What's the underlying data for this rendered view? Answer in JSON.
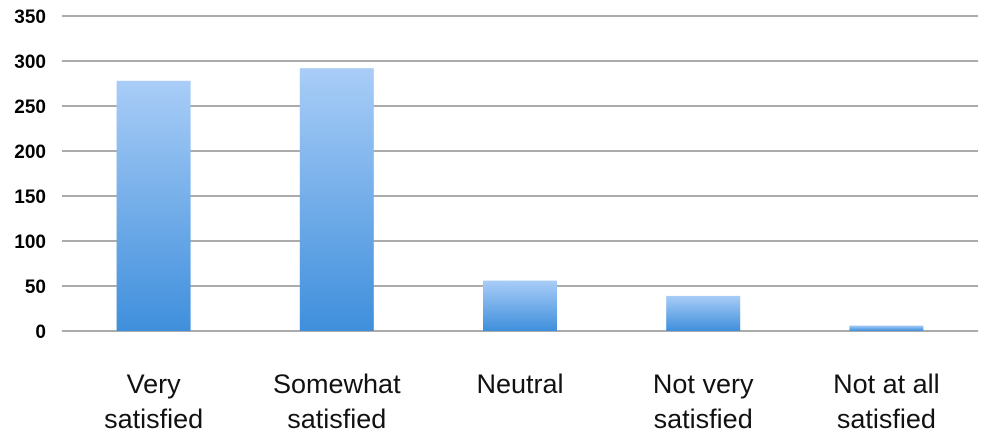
{
  "chart_data": {
    "type": "bar",
    "categories": [
      [
        "Very",
        "satisfied"
      ],
      [
        "Somewhat",
        "satisfied"
      ],
      [
        "Neutral"
      ],
      [
        "Not very",
        "satisfied"
      ],
      [
        "Not at all",
        "satisfied"
      ]
    ],
    "values": [
      278,
      292,
      56,
      39,
      6
    ],
    "ylim": [
      0,
      350
    ],
    "yticks": [
      0,
      50,
      100,
      150,
      200,
      250,
      300,
      350
    ],
    "grid": true,
    "legend": "none",
    "colors": {
      "bar_top": "#a9cdf7",
      "bar_bottom": "#3f8fdc",
      "grid": "#8f8f8f"
    }
  }
}
